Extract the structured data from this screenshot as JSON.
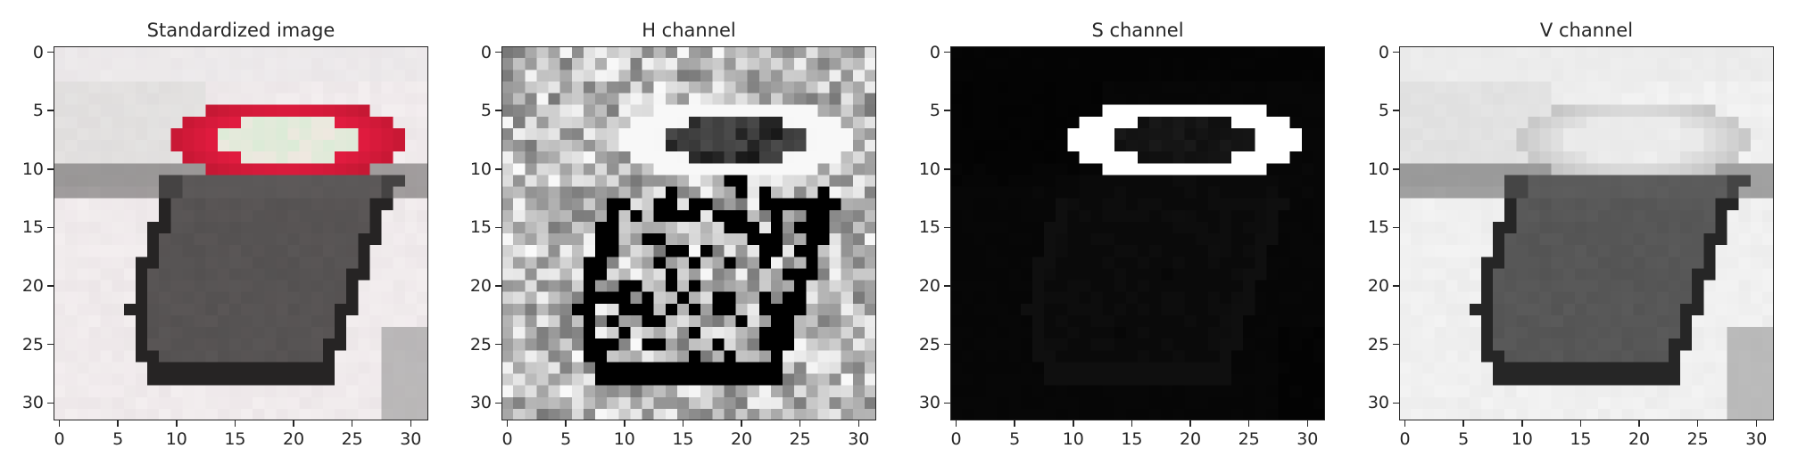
{
  "panels": [
    {
      "title": "Standardized image",
      "channel": "rgb"
    },
    {
      "title": "H channel",
      "channel": "h"
    },
    {
      "title": "S channel",
      "channel": "s"
    },
    {
      "title": "V channel",
      "channel": "v"
    }
  ],
  "axes": {
    "x_ticks": [
      "0",
      "5",
      "10",
      "15",
      "20",
      "25",
      "30"
    ],
    "y_ticks": [
      "0",
      "5",
      "10",
      "15",
      "20",
      "25",
      "30"
    ],
    "xlim": [
      -0.5,
      31.5
    ],
    "ylim": [
      31.5,
      -0.5
    ]
  },
  "image": {
    "size": 32,
    "colors": {
      "background": "#ece6e8",
      "dark_body": "#5a5656",
      "dark_edge": "#262424",
      "light_red": "#e31c40",
      "light_center": "#efe8e0"
    }
  }
}
